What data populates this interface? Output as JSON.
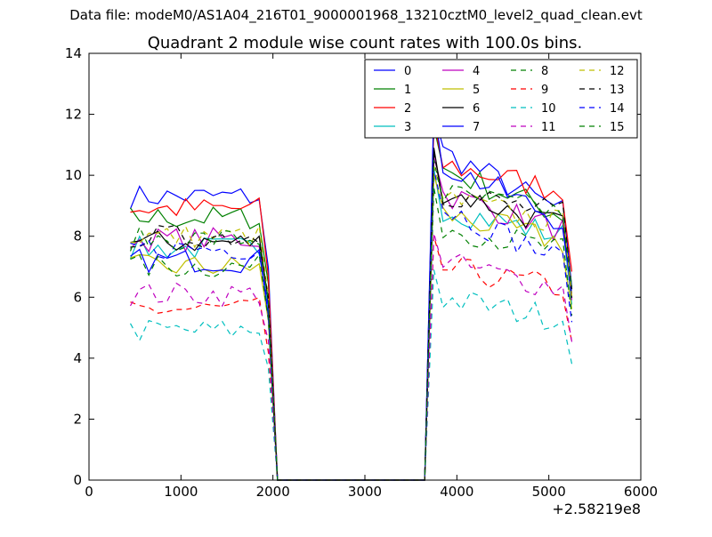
{
  "file_label": "Data file: modeM0/AS1A04_216T01_9000001968_13210cztM0_level2_quad_clean.evt",
  "chart_data": {
    "type": "line",
    "title": "Quadrant 2 module wise count rates with 100.0s bins.",
    "xlabel": "",
    "ylabel": "",
    "offset_label": "+2.58219e8",
    "xlim": [
      0,
      6000
    ],
    "ylim": [
      0,
      14
    ],
    "x_ticks": [
      0,
      1000,
      2000,
      3000,
      4000,
      5000,
      6000
    ],
    "y_ticks": [
      0,
      2,
      4,
      6,
      8,
      10,
      12,
      14
    ],
    "grid": false,
    "legend_position": "top-right",
    "legend_columns": 4,
    "segments": [
      {
        "x_start": 450,
        "x_end": 1950
      },
      {
        "x_start": 1950,
        "x_end": 3650,
        "note_values": "drop to 0"
      },
      {
        "x_start": 3750,
        "x_end": 5250
      }
    ],
    "x_gap": [
      2050,
      3650
    ],
    "series": [
      {
        "name": "0",
        "color": "#0000ff",
        "style": "solid",
        "level1": 9.3,
        "level2": 10.9,
        "peak2": 12.0,
        "end2": 8.8
      },
      {
        "name": "1",
        "color": "#008000",
        "style": "solid",
        "level1": 8.6,
        "level2": 10.3,
        "peak2": 11.6,
        "end2": 8.7
      },
      {
        "name": "2",
        "color": "#ff0000",
        "style": "solid",
        "level1": 8.9,
        "level2": 10.4,
        "peak2": 11.8,
        "end2": 9.5
      },
      {
        "name": "3",
        "color": "#00bfbf",
        "style": "solid",
        "level1": 7.6,
        "level2": 9.0,
        "peak2": 10.2,
        "end2": 8.0
      },
      {
        "name": "4",
        "color": "#bf00bf",
        "style": "solid",
        "level1": 7.9,
        "level2": 9.5,
        "peak2": 10.6,
        "end2": 8.2
      },
      {
        "name": "5",
        "color": "#bfbf00",
        "style": "solid",
        "level1": 7.0,
        "level2": 8.8,
        "peak2": 10.0,
        "end2": 7.8
      },
      {
        "name": "6",
        "color": "#000000",
        "style": "solid",
        "level1": 7.8,
        "level2": 9.6,
        "peak2": 10.9,
        "end2": 8.3
      },
      {
        "name": "7",
        "color": "#0000ff",
        "style": "solid",
        "level1": 7.2,
        "level2": 10.5,
        "peak2": 12.3,
        "end2": 8.5
      },
      {
        "name": "8",
        "color": "#008000",
        "style": "dashed",
        "level1": 7.0,
        "level2": 8.4,
        "peak2": 9.6,
        "end2": 7.5
      },
      {
        "name": "9",
        "color": "#ff0000",
        "style": "dashed",
        "level1": 5.6,
        "level2": 7.0,
        "peak2": 8.0,
        "end2": 6.3
      },
      {
        "name": "10",
        "color": "#00bfbf",
        "style": "dashed",
        "level1": 4.9,
        "level2": 6.0,
        "peak2": 6.9,
        "end2": 5.3
      },
      {
        "name": "11",
        "color": "#bf00bf",
        "style": "dashed",
        "level1": 6.1,
        "level2": 7.2,
        "peak2": 8.1,
        "end2": 6.3
      },
      {
        "name": "12",
        "color": "#bfbf00",
        "style": "dashed",
        "level1": 8.0,
        "level2": 9.3,
        "peak2": 10.3,
        "end2": 8.4
      },
      {
        "name": "13",
        "color": "#000000",
        "style": "dashed",
        "level1": 8.0,
        "level2": 9.5,
        "peak2": 10.8,
        "end2": 8.7
      },
      {
        "name": "14",
        "color": "#0000ff",
        "style": "dashed",
        "level1": 7.6,
        "level2": 9.1,
        "peak2": 10.2,
        "end2": 7.2
      },
      {
        "name": "15",
        "color": "#008000",
        "style": "dashed",
        "level1": 7.9,
        "level2": 9.4,
        "peak2": 10.5,
        "end2": 8.8
      }
    ]
  }
}
